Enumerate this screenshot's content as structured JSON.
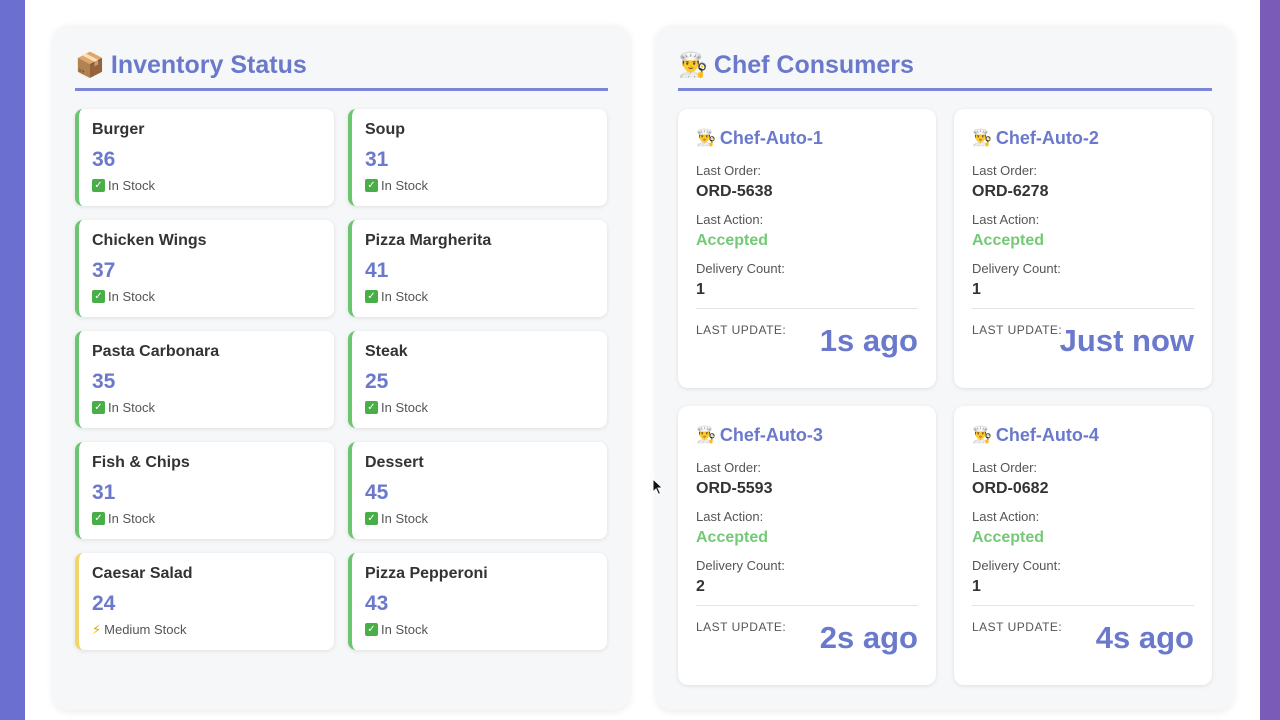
{
  "inventory": {
    "title": "Inventory Status",
    "title_icon": "📦",
    "items": [
      {
        "name": "Burger",
        "qty": "36",
        "status": "In Stock",
        "level": "in"
      },
      {
        "name": "Soup",
        "qty": "31",
        "status": "In Stock",
        "level": "in"
      },
      {
        "name": "Chicken Wings",
        "qty": "37",
        "status": "In Stock",
        "level": "in"
      },
      {
        "name": "Pizza Margherita",
        "qty": "41",
        "status": "In Stock",
        "level": "in"
      },
      {
        "name": "Pasta Carbonara",
        "qty": "35",
        "status": "In Stock",
        "level": "in"
      },
      {
        "name": "Steak",
        "qty": "25",
        "status": "In Stock",
        "level": "in"
      },
      {
        "name": "Fish & Chips",
        "qty": "31",
        "status": "In Stock",
        "level": "in"
      },
      {
        "name": "Dessert",
        "qty": "45",
        "status": "In Stock",
        "level": "in"
      },
      {
        "name": "Caesar Salad",
        "qty": "24",
        "status": "Medium Stock",
        "level": "medium"
      },
      {
        "name": "Pizza Pepperoni",
        "qty": "43",
        "status": "In Stock",
        "level": "in"
      }
    ]
  },
  "chefs": {
    "title": "Chef Consumers",
    "title_icon": "👨‍🍳",
    "labels": {
      "last_order": "Last Order:",
      "last_action": "Last Action:",
      "delivery_count": "Delivery Count:",
      "last_update": "LAST UPDATE:"
    },
    "items": [
      {
        "name": "Chef-Auto-1",
        "last_order": "ORD-5638",
        "last_action": "Accepted",
        "delivery_count": "1",
        "last_update": "1s ago"
      },
      {
        "name": "Chef-Auto-2",
        "last_order": "ORD-6278",
        "last_action": "Accepted",
        "delivery_count": "1",
        "last_update": "Just now"
      },
      {
        "name": "Chef-Auto-3",
        "last_order": "ORD-5593",
        "last_action": "Accepted",
        "delivery_count": "2",
        "last_update": "2s ago"
      },
      {
        "name": "Chef-Auto-4",
        "last_order": "ORD-0682",
        "last_action": "Accepted",
        "delivery_count": "1",
        "last_update": "4s ago"
      }
    ]
  },
  "colors": {
    "accent": "#6b79cc",
    "in_stock": "#6cc66f",
    "medium_stock": "#f1d569",
    "accepted": "#74c977"
  }
}
